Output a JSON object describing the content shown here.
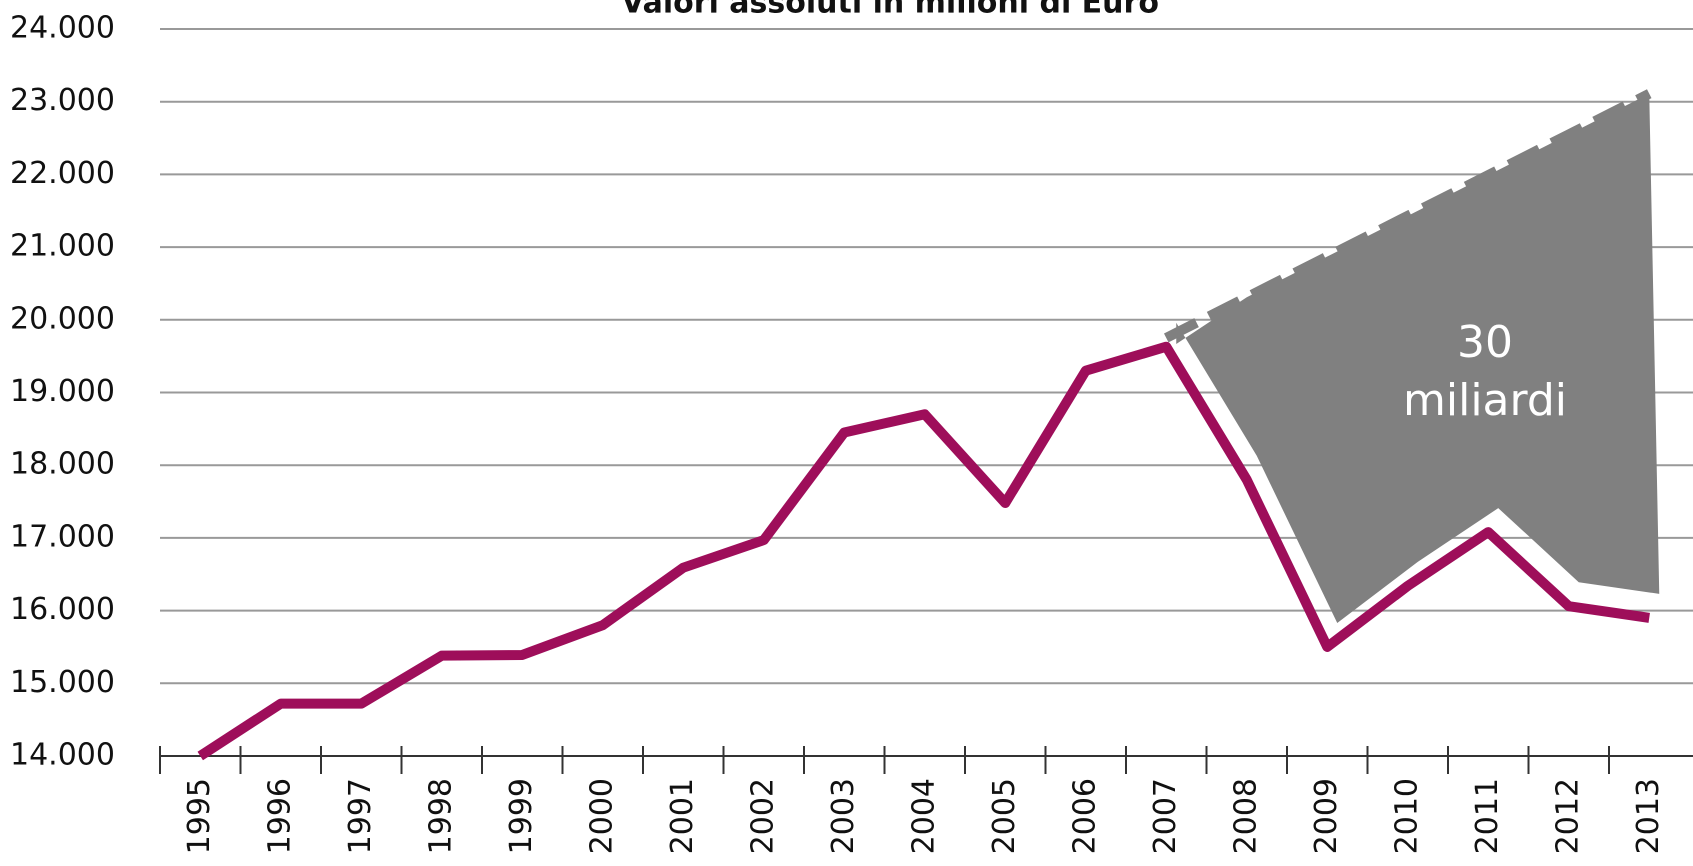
{
  "chart_data": {
    "type": "line",
    "title": "Valori assoluti in milioni di Euro",
    "categories": [
      "1995",
      "1996",
      "1997",
      "1998",
      "1999",
      "2000",
      "2001",
      "2002",
      "2003",
      "2004",
      "2005",
      "2006",
      "2007",
      "2008",
      "2009",
      "2010",
      "2011",
      "2012",
      "2013"
    ],
    "series": [
      {
        "color": "#9e0e5a",
        "values": [
          14000,
          14720,
          14720,
          15380,
          15390,
          15800,
          16590,
          16970,
          18450,
          18700,
          17480,
          19300,
          19630,
          17800,
          15500,
          16340,
          17080,
          16060,
          15900
        ]
      },
      {
        "color": "#808080",
        "values": [
          null,
          null,
          null,
          null,
          null,
          null,
          null,
          null,
          null,
          null,
          null,
          null,
          19750,
          20310,
          20870,
          21430,
          21990,
          22550,
          23110
        ]
      }
    ],
    "annotation": [
      "30",
      "miliardi"
    ],
    "ylim": [
      14000,
      24000
    ],
    "yticks": [
      {
        "value": 14000,
        "label": "14.000"
      },
      {
        "value": 15000,
        "label": "15.000"
      },
      {
        "value": 16000,
        "label": "16.000"
      },
      {
        "value": 17000,
        "label": "17.000"
      },
      {
        "value": 18000,
        "label": "18.000"
      },
      {
        "value": 19000,
        "label": "19.000"
      },
      {
        "value": 20000,
        "label": "20.000"
      },
      {
        "value": 21000,
        "label": "21.000"
      },
      {
        "value": 22000,
        "label": "22.000"
      },
      {
        "value": 23000,
        "label": "23.000"
      },
      {
        "value": 24000,
        "label": "24.000"
      }
    ],
    "grid": true
  }
}
